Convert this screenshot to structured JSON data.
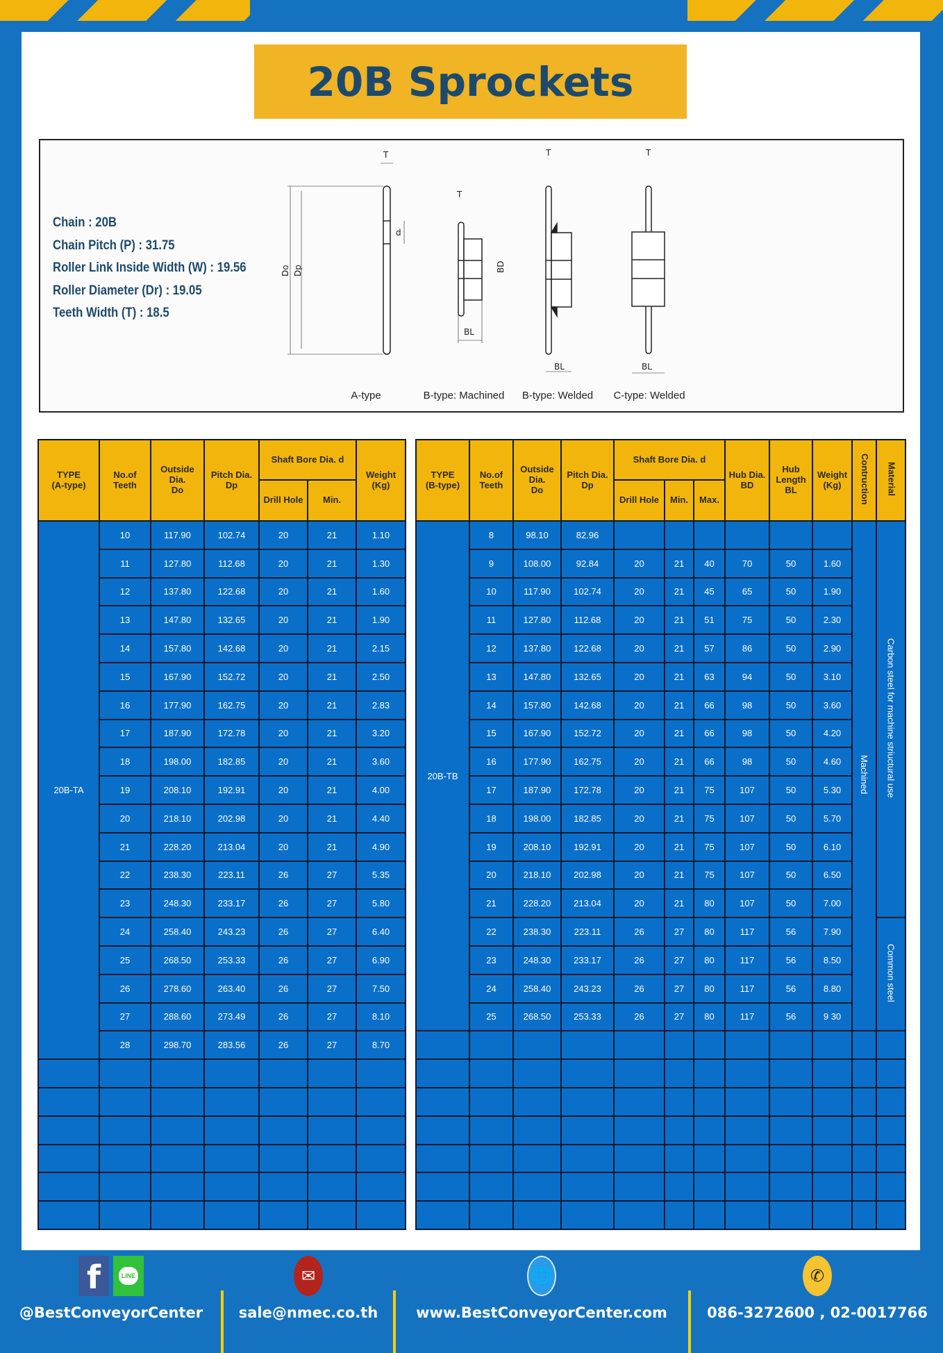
{
  "title": "20B Sprockets",
  "specs": [
    "Chain  : 20B",
    "Chain Pitch (P) :  31.75",
    "Roller Link Inside Width (W) :  19.56",
    "Roller Diameter (Dr) : 19.05",
    "Teeth Width (T) :  18.5"
  ],
  "diagram": {
    "types": [
      "A-type",
      "B-type: Machined",
      "B-type: Welded",
      "C-type: Welded"
    ],
    "dims": {
      "T": "T",
      "Do": "Do",
      "Dp": "Dp",
      "d": "d",
      "BD": "BD",
      "BL": "BL"
    }
  },
  "colors": {
    "frame_blue": "#1572c0",
    "cell_blue": "#0a6fc9",
    "header_gold": "#f2b50b",
    "title_gold": "#f0b425",
    "title_text": "#1d4a6c"
  },
  "table_a": {
    "headers": {
      "type": [
        "TYPE",
        "(A-type)"
      ],
      "teeth": [
        "No.of",
        "Teeth"
      ],
      "outside": [
        "Outside",
        "Dia.",
        "Do"
      ],
      "pitch": [
        "Pitch Dia.",
        "Dp"
      ],
      "shaft": "Shaft Bore Dia. d",
      "drill": "Drill Hole",
      "min": "Min.",
      "weight": [
        "Weight",
        "(Kg)"
      ]
    },
    "type_label": "20B-TA",
    "empty_rows": 6,
    "rows": [
      [
        "10",
        "117.90",
        "102.74",
        "20",
        "21",
        "1.10"
      ],
      [
        "11",
        "127.80",
        "112.68",
        "20",
        "21",
        "1.30"
      ],
      [
        "12",
        "137.80",
        "122.68",
        "20",
        "21",
        "1.60"
      ],
      [
        "13",
        "147.80",
        "132.65",
        "20",
        "21",
        "1.90"
      ],
      [
        "14",
        "157.80",
        "142.68",
        "20",
        "21",
        "2.15"
      ],
      [
        "15",
        "167.90",
        "152.72",
        "20",
        "21",
        "2.50"
      ],
      [
        "16",
        "177.90",
        "162.75",
        "20",
        "21",
        "2.83"
      ],
      [
        "17",
        "187.90",
        "172.78",
        "20",
        "21",
        "3.20"
      ],
      [
        "18",
        "198.00",
        "182.85",
        "20",
        "21",
        "3.60"
      ],
      [
        "19",
        "208.10",
        "192.91",
        "20",
        "21",
        "4.00"
      ],
      [
        "20",
        "218.10",
        "202.98",
        "20",
        "21",
        "4.40"
      ],
      [
        "21",
        "228.20",
        "213.04",
        "20",
        "21",
        "4.90"
      ],
      [
        "22",
        "238.30",
        "223.11",
        "26",
        "27",
        "5.35"
      ],
      [
        "23",
        "248.30",
        "233.17",
        "26",
        "27",
        "5.80"
      ],
      [
        "24",
        "258.40",
        "243.23",
        "26",
        "27",
        "6.40"
      ],
      [
        "25",
        "268.50",
        "253.33",
        "26",
        "27",
        "6.90"
      ],
      [
        "26",
        "278.60",
        "263.40",
        "26",
        "27",
        "7.50"
      ],
      [
        "27",
        "288.60",
        "273.49",
        "26",
        "27",
        "8.10"
      ],
      [
        "28",
        "298.70",
        "283.56",
        "26",
        "27",
        "8.70"
      ]
    ]
  },
  "table_b": {
    "headers": {
      "type": [
        "TYPE",
        "(B-type)"
      ],
      "teeth": [
        "No.of",
        "Teeth"
      ],
      "outside": [
        "Outside",
        "Dia.",
        "Do"
      ],
      "pitch": [
        "Pitch Dia.",
        "Dp"
      ],
      "shaft": "Shaft Bore Dia. d",
      "drill": "Drill Hole",
      "min": "Min.",
      "max": "Max.",
      "hub_dia": [
        "Hub Dia.",
        "BD"
      ],
      "hub_len": [
        "Hub",
        "Length",
        "BL"
      ],
      "weight": [
        "Weight",
        "(Kg)"
      ],
      "construction": "Contruction",
      "material": "Material"
    },
    "type_label": "20B-TB",
    "construction_value": "Machined",
    "materials": [
      {
        "label": "Carbon steel for machine striuctural use",
        "rows": 14
      },
      {
        "label": "Common steel",
        "rows": 4
      }
    ],
    "empty_rows": 7,
    "rows": [
      [
        "8",
        "98.10",
        "82.96",
        "",
        "",
        "",
        "",
        "",
        ""
      ],
      [
        "9",
        "108.00",
        "92.84",
        "20",
        "21",
        "40",
        "70",
        "50",
        "1.60"
      ],
      [
        "10",
        "117.90",
        "102.74",
        "20",
        "21",
        "45",
        "65",
        "50",
        "1.90"
      ],
      [
        "11",
        "127.80",
        "112.68",
        "20",
        "21",
        "51",
        "75",
        "50",
        "2.30"
      ],
      [
        "12",
        "137.80",
        "122.68",
        "20",
        "21",
        "57",
        "86",
        "50",
        "2.90"
      ],
      [
        "13",
        "147.80",
        "132.65",
        "20",
        "21",
        "63",
        "94",
        "50",
        "3.10"
      ],
      [
        "14",
        "157.80",
        "142.68",
        "20",
        "21",
        "66",
        "98",
        "50",
        "3.60"
      ],
      [
        "15",
        "167.90",
        "152.72",
        "20",
        "21",
        "66",
        "98",
        "50",
        "4.20"
      ],
      [
        "16",
        "177.90",
        "162.75",
        "20",
        "21",
        "66",
        "98",
        "50",
        "4.60"
      ],
      [
        "17",
        "187.90",
        "172.78",
        "20",
        "21",
        "75",
        "107",
        "50",
        "5.30"
      ],
      [
        "18",
        "198.00",
        "182.85",
        "20",
        "21",
        "75",
        "107",
        "50",
        "5.70"
      ],
      [
        "19",
        "208.10",
        "192.91",
        "20",
        "21",
        "75",
        "107",
        "50",
        "6.10"
      ],
      [
        "20",
        "218.10",
        "202.98",
        "20",
        "21",
        "75",
        "107",
        "50",
        "6.50"
      ],
      [
        "21",
        "228.20",
        "213.04",
        "20",
        "21",
        "80",
        "107",
        "50",
        "7.00"
      ],
      [
        "22",
        "238.30",
        "223.11",
        "26",
        "27",
        "80",
        "117",
        "56",
        "7.90"
      ],
      [
        "23",
        "248.30",
        "233.17",
        "26",
        "27",
        "80",
        "117",
        "56",
        "8.50"
      ],
      [
        "24",
        "258.40",
        "243.23",
        "26",
        "27",
        "80",
        "117",
        "56",
        "8.80"
      ],
      [
        "25",
        "268.50",
        "253.33",
        "26",
        "27",
        "80",
        "117",
        "56",
        "9 30"
      ]
    ]
  },
  "footer": {
    "social": {
      "label": "@BestConveyorCenter",
      "icons": [
        "facebook-icon",
        "line-icon"
      ],
      "line_text": "LINE"
    },
    "email": {
      "label": "sale@nmec.co.th",
      "icon": "mail-icon"
    },
    "web": {
      "label": "www.BestConveyorCenter.com",
      "icon": "globe-icon"
    },
    "phone": {
      "label": "086-3272600 , 02-0017766",
      "icon": "phone-icon"
    }
  }
}
